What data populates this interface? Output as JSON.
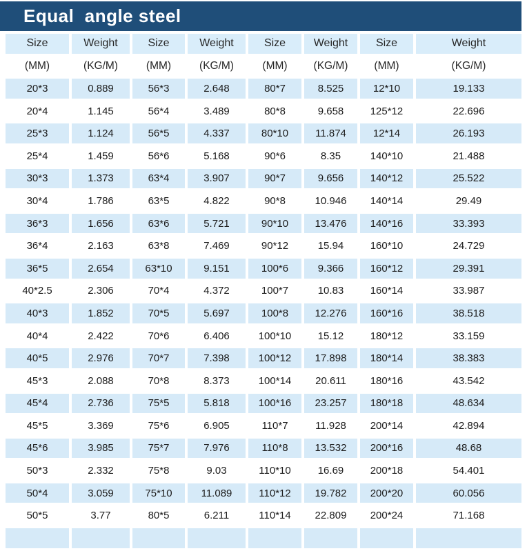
{
  "title": "Equal  angle steel",
  "colors": {
    "title_bg": "#1f4e79",
    "title_text": "#ffffff",
    "stripe": "#d6eaf8",
    "header_bg": "#d9edfa",
    "text": "#1c1c1c",
    "page_bg": "#ffffff"
  },
  "table": {
    "header_row1": [
      "Size",
      "Weight",
      "Size",
      "Weight",
      "Size",
      "Weight",
      "Size",
      "Weight"
    ],
    "header_row2": [
      "(MM)",
      "(KG/M)",
      "(MM)",
      "(KG/M)",
      "(MM)",
      "(KG/M)",
      "(MM)",
      "(KG/M)"
    ],
    "rows": [
      [
        "20*3",
        "0.889",
        "56*3",
        "2.648",
        "80*7",
        "8.525",
        "12*10",
        "19.133"
      ],
      [
        "20*4",
        "1.145",
        "56*4",
        "3.489",
        "80*8",
        "9.658",
        "125*12",
        "22.696"
      ],
      [
        "25*3",
        "1.124",
        "56*5",
        "4.337",
        "80*10",
        "11.874",
        "12*14",
        "26.193"
      ],
      [
        "25*4",
        "1.459",
        "56*6",
        "5.168",
        "90*6",
        "8.35",
        "140*10",
        "21.488"
      ],
      [
        "30*3",
        "1.373",
        "63*4",
        "3.907",
        "90*7",
        "9.656",
        "140*12",
        "25.522"
      ],
      [
        "30*4",
        "1.786",
        "63*5",
        "4.822",
        "90*8",
        "10.946",
        "140*14",
        "29.49"
      ],
      [
        "36*3",
        "1.656",
        "63*6",
        "5.721",
        "90*10",
        "13.476",
        "140*16",
        "33.393"
      ],
      [
        "36*4",
        "2.163",
        "63*8",
        "7.469",
        "90*12",
        "15.94",
        "160*10",
        "24.729"
      ],
      [
        "36*5",
        "2.654",
        "63*10",
        "9.151",
        "100*6",
        "9.366",
        "160*12",
        "29.391"
      ],
      [
        "40*2.5",
        "2.306",
        "70*4",
        "4.372",
        "100*7",
        "10.83",
        "160*14",
        "33.987"
      ],
      [
        "40*3",
        "1.852",
        "70*5",
        "5.697",
        "100*8",
        "12.276",
        "160*16",
        "38.518"
      ],
      [
        "40*4",
        "2.422",
        "70*6",
        "6.406",
        "100*10",
        "15.12",
        "180*12",
        "33.159"
      ],
      [
        "40*5",
        "2.976",
        "70*7",
        "7.398",
        "100*12",
        "17.898",
        "180*14",
        "38.383"
      ],
      [
        "45*3",
        "2.088",
        "70*8",
        "8.373",
        "100*14",
        "20.611",
        "180*16",
        "43.542"
      ],
      [
        "45*4",
        "2.736",
        "75*5",
        "5.818",
        "100*16",
        "23.257",
        "180*18",
        "48.634"
      ],
      [
        "45*5",
        "3.369",
        "75*6",
        "6.905",
        "110*7",
        "11.928",
        "200*14",
        "42.894"
      ],
      [
        "45*6",
        "3.985",
        "75*7",
        "7.976",
        "110*8",
        "13.532",
        "200*16",
        "48.68"
      ],
      [
        "50*3",
        "2.332",
        "75*8",
        "9.03",
        "110*10",
        "16.69",
        "200*18",
        "54.401"
      ],
      [
        "50*4",
        "3.059",
        "75*10",
        "11.089",
        "110*12",
        "19.782",
        "200*20",
        "60.056"
      ],
      [
        "50*5",
        "3.77",
        "80*5",
        "6.211",
        "110*14",
        "22.809",
        "200*24",
        "71.168"
      ]
    ]
  }
}
